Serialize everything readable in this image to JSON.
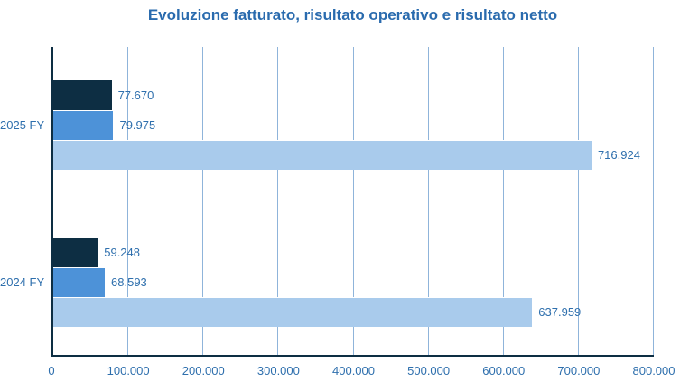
{
  "chart_data": {
    "type": "bar",
    "orientation": "horizontal",
    "title": "Evoluzione fatturato, risultato operativo e risultato netto",
    "categories": [
      "2025 FY",
      "2024 FY"
    ],
    "series": [
      {
        "name": "risultato netto",
        "color": "#0d2e43",
        "values": [
          77670,
          59248
        ],
        "labels": [
          "77.670",
          "59.248"
        ]
      },
      {
        "name": "risultato operativo",
        "color": "#4d92d8",
        "values": [
          79975,
          68593
        ],
        "labels": [
          "79.975",
          "68.593"
        ]
      },
      {
        "name": "fatturato",
        "color": "#a9cbec",
        "values": [
          716924,
          637959
        ],
        "labels": [
          "716.924",
          "637.959"
        ]
      }
    ],
    "xlim": [
      0,
      800000
    ],
    "x_ticks": [
      {
        "value": 0,
        "label": "0"
      },
      {
        "value": 100000,
        "label": "100.000"
      },
      {
        "value": 200000,
        "label": "200.000"
      },
      {
        "value": 300000,
        "label": "300.000"
      },
      {
        "value": 400000,
        "label": "400.000"
      },
      {
        "value": 500000,
        "label": "500.000"
      },
      {
        "value": 600000,
        "label": "600.000"
      },
      {
        "value": 700000,
        "label": "700.000"
      },
      {
        "value": 800000,
        "label": "800.000"
      }
    ],
    "grid": true,
    "legend": false,
    "data_labels": true,
    "colors": {
      "title": "#2a6bae",
      "label_text": "#2e6fad",
      "axis_line": "#0d2e43",
      "gridline": "#8fb4da",
      "background": "#ffffff"
    }
  }
}
